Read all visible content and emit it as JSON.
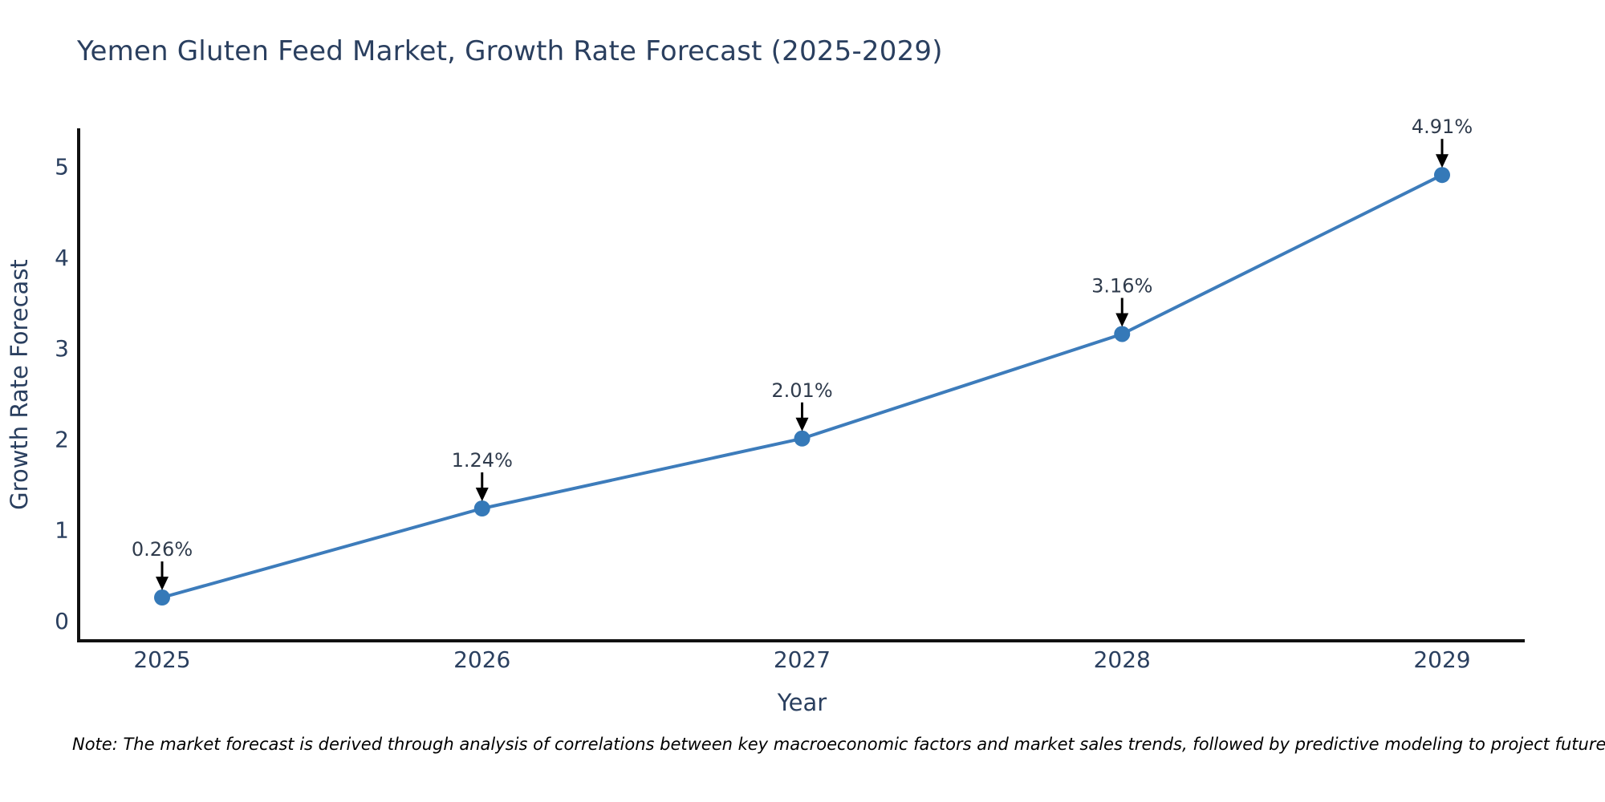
{
  "title": "Yemen Gluten Feed Market, Growth Rate Forecast (2025-2029)",
  "note": "Note: The market forecast is derived through analysis of correlations between key macroeconomic factors and market sales trends, followed by predictive modeling to project future sales.",
  "chart_data": {
    "type": "line",
    "title": "Yemen Gluten Feed Market, Growth Rate Forecast (2025-2029)",
    "xlabel": "Year",
    "ylabel": "Growth Rate Forecast",
    "categories": [
      "2025",
      "2026",
      "2027",
      "2028",
      "2029"
    ],
    "series": [
      {
        "name": "Growth Rate Forecast",
        "values": [
          0.26,
          1.24,
          2.01,
          3.16,
          4.91
        ],
        "point_labels": [
          "0.26%",
          "1.24%",
          "2.01%",
          "3.16%",
          "4.91%"
        ]
      }
    ],
    "ytick_labels": [
      "0",
      "1",
      "2",
      "3",
      "4",
      "5"
    ],
    "yticks": [
      0,
      1,
      2,
      3,
      4,
      5
    ],
    "ylim": [
      -0.22,
      5.42
    ],
    "grid": false,
    "legend": "none",
    "colors": {
      "line": "#3d7cbb",
      "marker": "#3579b8",
      "axis": "#111111",
      "tick_text": "#2a3f5f",
      "title_text": "#2a3f5f",
      "annotation_text": "#2f3b4c",
      "annotation_arrow": "#000000",
      "background": "#ffffff"
    }
  }
}
